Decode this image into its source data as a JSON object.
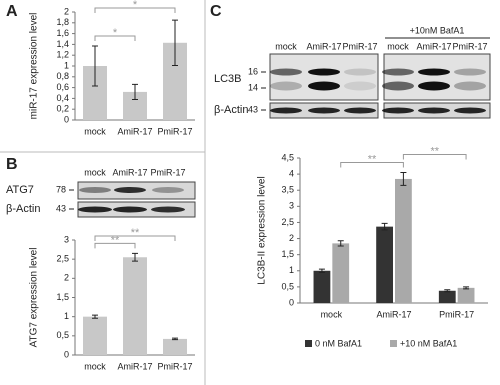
{
  "panel_labels": [
    "A",
    "B",
    "C"
  ],
  "blot_b": {
    "lanes": [
      "mock",
      "AmiR-17",
      "PmiR-17"
    ],
    "rows": [
      {
        "name": "ATG7",
        "markers": [
          "78"
        ]
      },
      {
        "name": "β-Actin",
        "markers": [
          "43"
        ]
      }
    ]
  },
  "blot_c": {
    "lanes": [
      "mock",
      "AmiR-17",
      "PmiR-17",
      "mock",
      "AmiR-17",
      "PmiR-17"
    ],
    "treatment": "+10nM BafA1",
    "rows": [
      {
        "name": "LC3B",
        "markers": [
          "16",
          "14"
        ]
      },
      {
        "name": "β-Actin",
        "markers": [
          "43"
        ]
      }
    ]
  },
  "chart_data": [
    {
      "type": "bar",
      "ylabel": "miR-17 expression level",
      "categories": [
        "mock",
        "AmiR-17",
        "PmiR-17"
      ],
      "values": [
        1,
        0.52,
        1.43
      ],
      "errors": [
        0.37,
        0.14,
        0.42
      ],
      "color": "#c8c8c8",
      "ylim": [
        0,
        2
      ],
      "yticks": [
        0,
        {
          "value": 0.2,
          "label": "0,2"
        },
        {
          "value": 0.4,
          "label": "0,4"
        },
        {
          "value": 0.6,
          "label": "0,6"
        },
        {
          "value": 0.8,
          "label": "0,8"
        },
        1,
        {
          "value": 1.2,
          "label": "1,2"
        },
        {
          "value": 1.4,
          "label": "1,4"
        },
        {
          "value": 1.6,
          "label": "1,6"
        },
        {
          "value": 1.8,
          "label": "1,8"
        },
        2
      ],
      "brackets": [
        {
          "between": [
            0,
            1
          ],
          "label": "*"
        },
        {
          "between": [
            0,
            2
          ],
          "label": "*"
        }
      ]
    },
    {
      "type": "bar",
      "ylabel": "ATG7 expression level",
      "categories": [
        "mock",
        "AmiR-17",
        "PmiR-17"
      ],
      "values": [
        1,
        2.55,
        0.42
      ],
      "errors": [
        0.04,
        0.1,
        0.02
      ],
      "color": "#c8c8c8",
      "ylim": [
        0,
        3
      ],
      "yticks": [
        0,
        {
          "value": 0.5,
          "label": "0,5"
        },
        1,
        {
          "value": 1.5,
          "label": "1,5"
        },
        2,
        {
          "value": 2.5,
          "label": "2,5"
        },
        3
      ],
      "brackets": [
        {
          "between": [
            0,
            1
          ],
          "label": "**"
        },
        {
          "between": [
            0,
            2
          ],
          "label": "**"
        }
      ]
    },
    {
      "type": "grouped_bar",
      "ylabel": "LC3B-II expression level",
      "categories": [
        "mock",
        "AmiR-17",
        "PmiR-17"
      ],
      "series": [
        {
          "name": "0 nM BafA1",
          "color": "#333333",
          "values": [
            1,
            2.37,
            0.38
          ],
          "errors": [
            0.05,
            0.1,
            0.03
          ]
        },
        {
          "name": "+10 nM BafA1",
          "color": "#a9a9a9",
          "values": [
            1.85,
            3.85,
            0.47
          ],
          "errors": [
            0.08,
            0.2,
            0.03
          ]
        }
      ],
      "ylim": [
        0,
        4.5
      ],
      "yticks": [
        0,
        {
          "value": 0.5,
          "label": "0,5"
        },
        1,
        {
          "value": 1.5,
          "label": "1,5"
        },
        2,
        {
          "value": 2.5,
          "label": "2,5"
        },
        3,
        {
          "value": 3.5,
          "label": "3,5"
        },
        4,
        {
          "value": 4.5,
          "label": "4,5"
        }
      ],
      "brackets": [
        {
          "between": [
            0,
            1
          ],
          "label": "**"
        },
        {
          "between": [
            1,
            2
          ],
          "label": "**"
        }
      ],
      "legend": "bottom"
    }
  ]
}
